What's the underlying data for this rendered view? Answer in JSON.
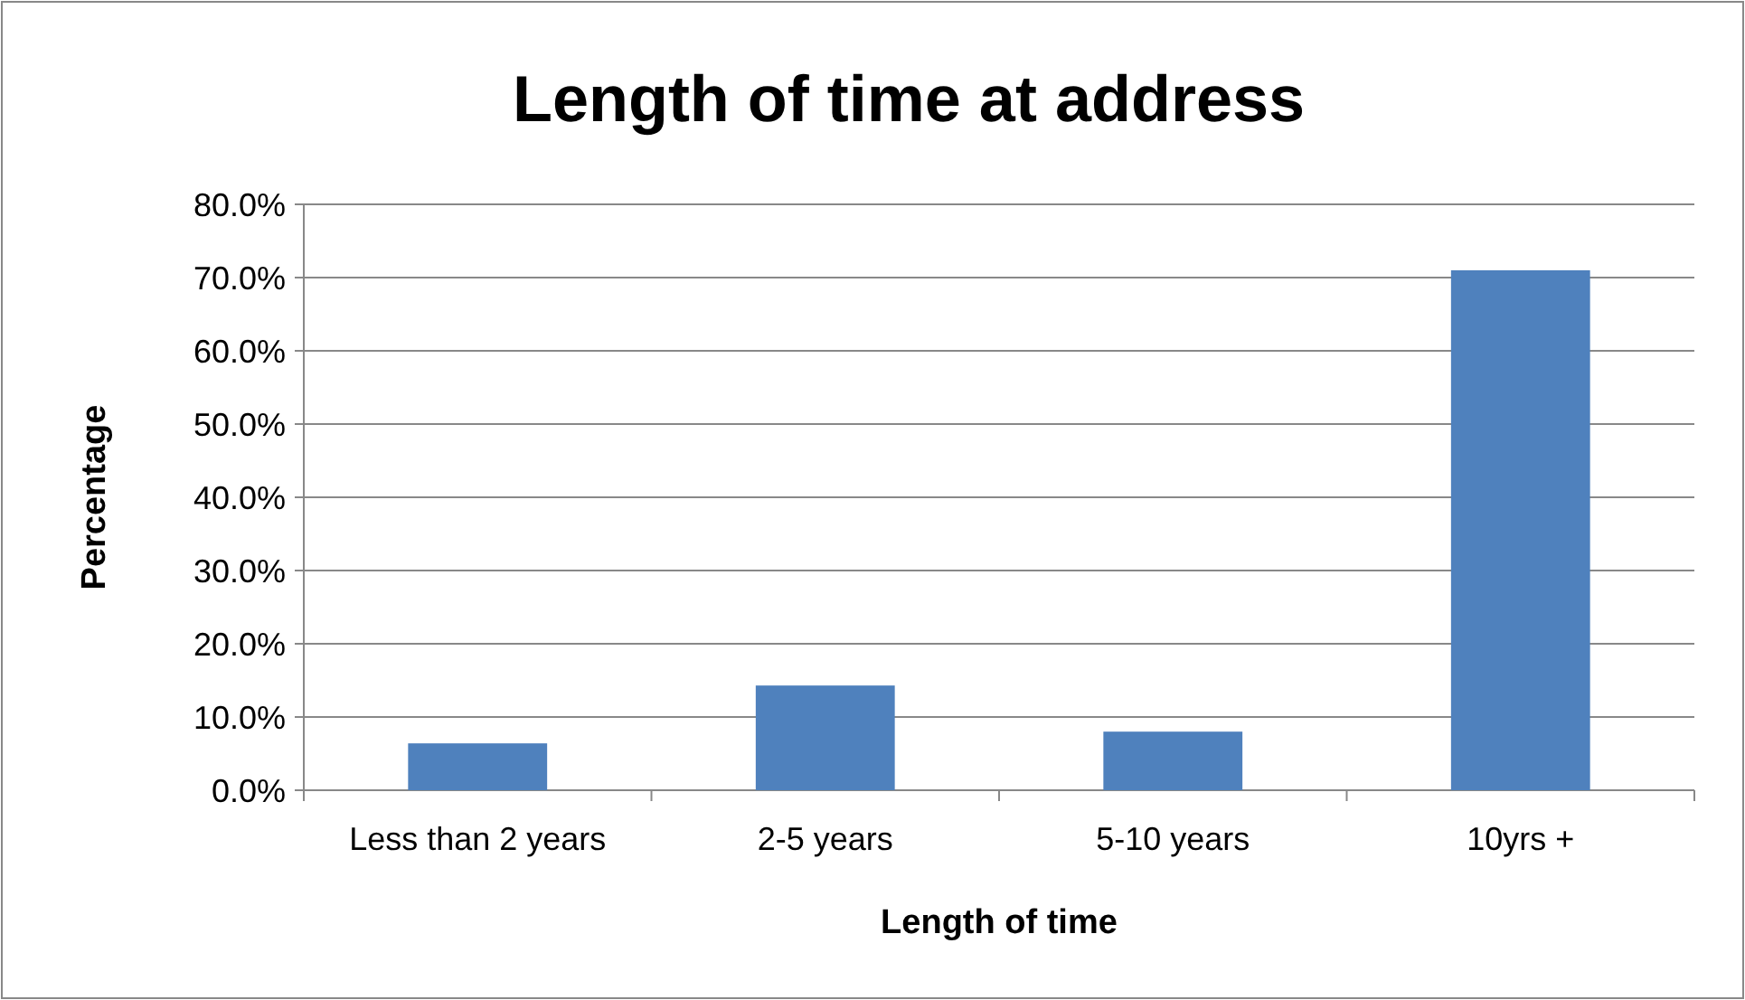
{
  "chart_data": {
    "type": "bar",
    "title": "Length of time at address",
    "xlabel": "Length of time",
    "ylabel": "Percentage",
    "categories": [
      "Less than 2 years",
      "2-5 years",
      "5-10 years",
      "10yrs +"
    ],
    "values": [
      6.4,
      14.3,
      8.0,
      71.0
    ],
    "color": "#4f81bd",
    "ylim": [
      0,
      80
    ],
    "yticks": [
      {
        "value": 0,
        "label": "0.0%"
      },
      {
        "value": 10,
        "label": "10.0%"
      },
      {
        "value": 20,
        "label": "20.0%"
      },
      {
        "value": 30,
        "label": "30.0%"
      },
      {
        "value": 40,
        "label": "40.0%"
      },
      {
        "value": 50,
        "label": "50.0%"
      },
      {
        "value": 60,
        "label": "60.0%"
      },
      {
        "value": 70,
        "label": "70.0%"
      },
      {
        "value": 80,
        "label": "80.0%"
      }
    ],
    "grid": "y"
  }
}
